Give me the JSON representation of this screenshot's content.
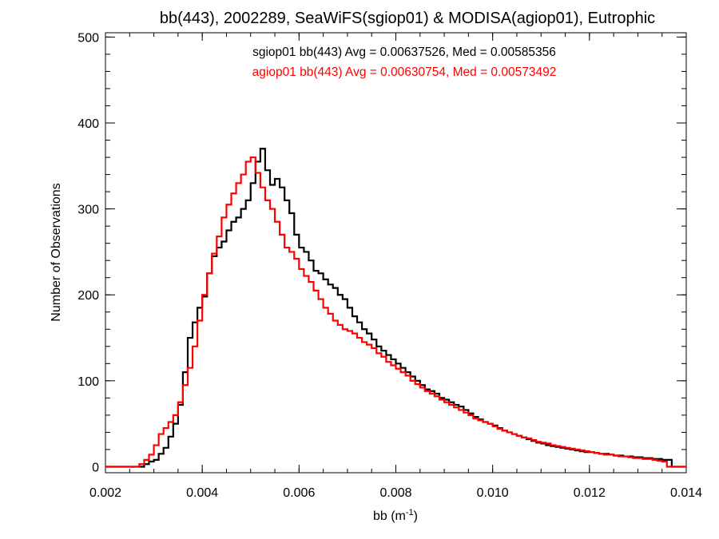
{
  "chart_data": {
    "type": "histogram",
    "title": "bb(443), 2002289, SeaWiFS(sgiop01) & MODISA(agiop01), Eutrophic",
    "xlabel_base": "bb (m",
    "xlabel_sup": "-1",
    "xlabel_tail": ")",
    "ylabel": "Number of Observations",
    "xlim": [
      0.002,
      0.014
    ],
    "ylim": [
      -7,
      505
    ],
    "xticks": [
      0.002,
      0.004,
      0.006,
      0.008,
      0.01,
      0.012,
      0.014
    ],
    "xtick_labels": [
      "0.002",
      "0.004",
      "0.006",
      "0.008",
      "0.010",
      "0.012",
      "0.014"
    ],
    "yticks": [
      0,
      100,
      200,
      300,
      400,
      500
    ],
    "ytick_labels": [
      "0",
      "100",
      "200",
      "300",
      "400",
      "500"
    ],
    "grid": false,
    "annotations": [
      {
        "text": "sgiop01 bb(443) Avg = 0.00637526, Med = 0.00585356",
        "color": "#000000"
      },
      {
        "text": "agiop01 bb(443) Avg = 0.00630754, Med = 0.00573492",
        "color": "#ff0000"
      }
    ],
    "series": [
      {
        "color": "#000000",
        "points": [
          [
            0.002,
            0
          ],
          [
            0.0027,
            0
          ],
          [
            0.0028,
            3
          ],
          [
            0.0029,
            6
          ],
          [
            0.003,
            8
          ],
          [
            0.0031,
            15
          ],
          [
            0.0032,
            22
          ],
          [
            0.0033,
            35
          ],
          [
            0.0034,
            50
          ],
          [
            0.0035,
            72
          ],
          [
            0.0036,
            110
          ],
          [
            0.0037,
            150
          ],
          [
            0.0038,
            168
          ],
          [
            0.0039,
            185
          ],
          [
            0.004,
            198
          ],
          [
            0.0041,
            225
          ],
          [
            0.0042,
            245
          ],
          [
            0.0043,
            255
          ],
          [
            0.0044,
            262
          ],
          [
            0.0045,
            275
          ],
          [
            0.0046,
            285
          ],
          [
            0.0047,
            290
          ],
          [
            0.0048,
            300
          ],
          [
            0.0049,
            310
          ],
          [
            0.005,
            330
          ],
          [
            0.0051,
            355
          ],
          [
            0.0052,
            370
          ],
          [
            0.0053,
            345
          ],
          [
            0.0054,
            328
          ],
          [
            0.0055,
            335
          ],
          [
            0.0056,
            325
          ],
          [
            0.0057,
            310
          ],
          [
            0.0058,
            295
          ],
          [
            0.0059,
            270
          ],
          [
            0.006,
            255
          ],
          [
            0.0061,
            250
          ],
          [
            0.0062,
            240
          ],
          [
            0.0063,
            228
          ],
          [
            0.0064,
            225
          ],
          [
            0.0065,
            218
          ],
          [
            0.0066,
            212
          ],
          [
            0.0067,
            208
          ],
          [
            0.0068,
            200
          ],
          [
            0.0069,
            195
          ],
          [
            0.007,
            185
          ],
          [
            0.0071,
            175
          ],
          [
            0.0072,
            168
          ],
          [
            0.0073,
            160
          ],
          [
            0.0074,
            155
          ],
          [
            0.0075,
            148
          ],
          [
            0.0076,
            140
          ],
          [
            0.0077,
            135
          ],
          [
            0.0078,
            130
          ],
          [
            0.0079,
            125
          ],
          [
            0.008,
            120
          ],
          [
            0.0081,
            115
          ],
          [
            0.0082,
            110
          ],
          [
            0.0083,
            105
          ],
          [
            0.0084,
            100
          ],
          [
            0.0085,
            95
          ],
          [
            0.0086,
            90
          ],
          [
            0.0087,
            88
          ],
          [
            0.0088,
            85
          ],
          [
            0.0089,
            80
          ],
          [
            0.009,
            78
          ],
          [
            0.0091,
            75
          ],
          [
            0.0092,
            72
          ],
          [
            0.0093,
            70
          ],
          [
            0.0094,
            66
          ],
          [
            0.0095,
            62
          ],
          [
            0.0096,
            58
          ],
          [
            0.0097,
            55
          ],
          [
            0.0098,
            52
          ],
          [
            0.0099,
            50
          ],
          [
            0.01,
            48
          ],
          [
            0.0101,
            45
          ],
          [
            0.0102,
            42
          ],
          [
            0.0103,
            40
          ],
          [
            0.0104,
            38
          ],
          [
            0.0105,
            36
          ],
          [
            0.0106,
            34
          ],
          [
            0.0107,
            32
          ],
          [
            0.0108,
            30
          ],
          [
            0.0109,
            28
          ],
          [
            0.011,
            27
          ],
          [
            0.0111,
            25
          ],
          [
            0.0112,
            24
          ],
          [
            0.0113,
            23
          ],
          [
            0.0114,
            22
          ],
          [
            0.0115,
            21
          ],
          [
            0.0116,
            20
          ],
          [
            0.0117,
            19
          ],
          [
            0.0118,
            18
          ],
          [
            0.0119,
            17
          ],
          [
            0.012,
            17
          ],
          [
            0.0121,
            16
          ],
          [
            0.0122,
            15
          ],
          [
            0.0123,
            15
          ],
          [
            0.0124,
            14
          ],
          [
            0.0125,
            13
          ],
          [
            0.0126,
            13
          ],
          [
            0.0127,
            12
          ],
          [
            0.0128,
            12
          ],
          [
            0.0129,
            11
          ],
          [
            0.013,
            11
          ],
          [
            0.0131,
            10
          ],
          [
            0.0132,
            10
          ],
          [
            0.0133,
            9
          ],
          [
            0.0134,
            9
          ],
          [
            0.0135,
            8
          ],
          [
            0.0136,
            8
          ],
          [
            0.0137,
            0
          ],
          [
            0.014,
            0
          ]
        ]
      },
      {
        "color": "#ff0000",
        "points": [
          [
            0.002,
            0
          ],
          [
            0.0026,
            0
          ],
          [
            0.0027,
            3
          ],
          [
            0.0028,
            8
          ],
          [
            0.0029,
            14
          ],
          [
            0.003,
            25
          ],
          [
            0.0031,
            38
          ],
          [
            0.0032,
            45
          ],
          [
            0.0033,
            52
          ],
          [
            0.0034,
            60
          ],
          [
            0.0035,
            75
          ],
          [
            0.0036,
            95
          ],
          [
            0.0037,
            115
          ],
          [
            0.0038,
            140
          ],
          [
            0.0039,
            170
          ],
          [
            0.004,
            200
          ],
          [
            0.0041,
            225
          ],
          [
            0.0042,
            248
          ],
          [
            0.0043,
            268
          ],
          [
            0.0044,
            290
          ],
          [
            0.0045,
            305
          ],
          [
            0.0046,
            318
          ],
          [
            0.0047,
            330
          ],
          [
            0.0048,
            340
          ],
          [
            0.0049,
            355
          ],
          [
            0.005,
            360
          ],
          [
            0.0051,
            342
          ],
          [
            0.0052,
            325
          ],
          [
            0.0053,
            310
          ],
          [
            0.0054,
            300
          ],
          [
            0.0055,
            285
          ],
          [
            0.0056,
            270
          ],
          [
            0.0057,
            255
          ],
          [
            0.0058,
            250
          ],
          [
            0.0059,
            242
          ],
          [
            0.006,
            230
          ],
          [
            0.0061,
            222
          ],
          [
            0.0062,
            215
          ],
          [
            0.0063,
            205
          ],
          [
            0.0064,
            195
          ],
          [
            0.0065,
            185
          ],
          [
            0.0066,
            178
          ],
          [
            0.0067,
            170
          ],
          [
            0.0068,
            165
          ],
          [
            0.0069,
            160
          ],
          [
            0.007,
            158
          ],
          [
            0.0071,
            155
          ],
          [
            0.0072,
            150
          ],
          [
            0.0073,
            145
          ],
          [
            0.0074,
            142
          ],
          [
            0.0075,
            138
          ],
          [
            0.0076,
            132
          ],
          [
            0.0077,
            128
          ],
          [
            0.0078,
            122
          ],
          [
            0.0079,
            118
          ],
          [
            0.008,
            114
          ],
          [
            0.0081,
            110
          ],
          [
            0.0082,
            106
          ],
          [
            0.0083,
            100
          ],
          [
            0.0084,
            96
          ],
          [
            0.0085,
            92
          ],
          [
            0.0086,
            88
          ],
          [
            0.0087,
            85
          ],
          [
            0.0088,
            82
          ],
          [
            0.0089,
            78
          ],
          [
            0.009,
            75
          ],
          [
            0.0091,
            72
          ],
          [
            0.0092,
            69
          ],
          [
            0.0093,
            66
          ],
          [
            0.0094,
            63
          ],
          [
            0.0095,
            60
          ],
          [
            0.0096,
            56
          ],
          [
            0.0097,
            54
          ],
          [
            0.0098,
            52
          ],
          [
            0.0099,
            50
          ],
          [
            0.01,
            47
          ],
          [
            0.0101,
            44
          ],
          [
            0.0102,
            42
          ],
          [
            0.0103,
            40
          ],
          [
            0.0104,
            38
          ],
          [
            0.0105,
            36
          ],
          [
            0.0106,
            34
          ],
          [
            0.0107,
            33
          ],
          [
            0.0108,
            31
          ],
          [
            0.0109,
            29
          ],
          [
            0.011,
            28
          ],
          [
            0.0111,
            27
          ],
          [
            0.0112,
            25
          ],
          [
            0.0113,
            24
          ],
          [
            0.0114,
            23
          ],
          [
            0.0115,
            22
          ],
          [
            0.0116,
            21
          ],
          [
            0.0117,
            20
          ],
          [
            0.0118,
            19
          ],
          [
            0.0119,
            18
          ],
          [
            0.012,
            17
          ],
          [
            0.0121,
            16
          ],
          [
            0.0122,
            15
          ],
          [
            0.0123,
            14
          ],
          [
            0.0124,
            14
          ],
          [
            0.0125,
            13
          ],
          [
            0.0126,
            12
          ],
          [
            0.0127,
            12
          ],
          [
            0.0128,
            11
          ],
          [
            0.0129,
            10
          ],
          [
            0.013,
            10
          ],
          [
            0.0131,
            9
          ],
          [
            0.0132,
            9
          ],
          [
            0.0133,
            8
          ],
          [
            0.0134,
            7
          ],
          [
            0.0135,
            6
          ],
          [
            0.0136,
            0
          ],
          [
            0.014,
            0
          ]
        ]
      }
    ]
  }
}
